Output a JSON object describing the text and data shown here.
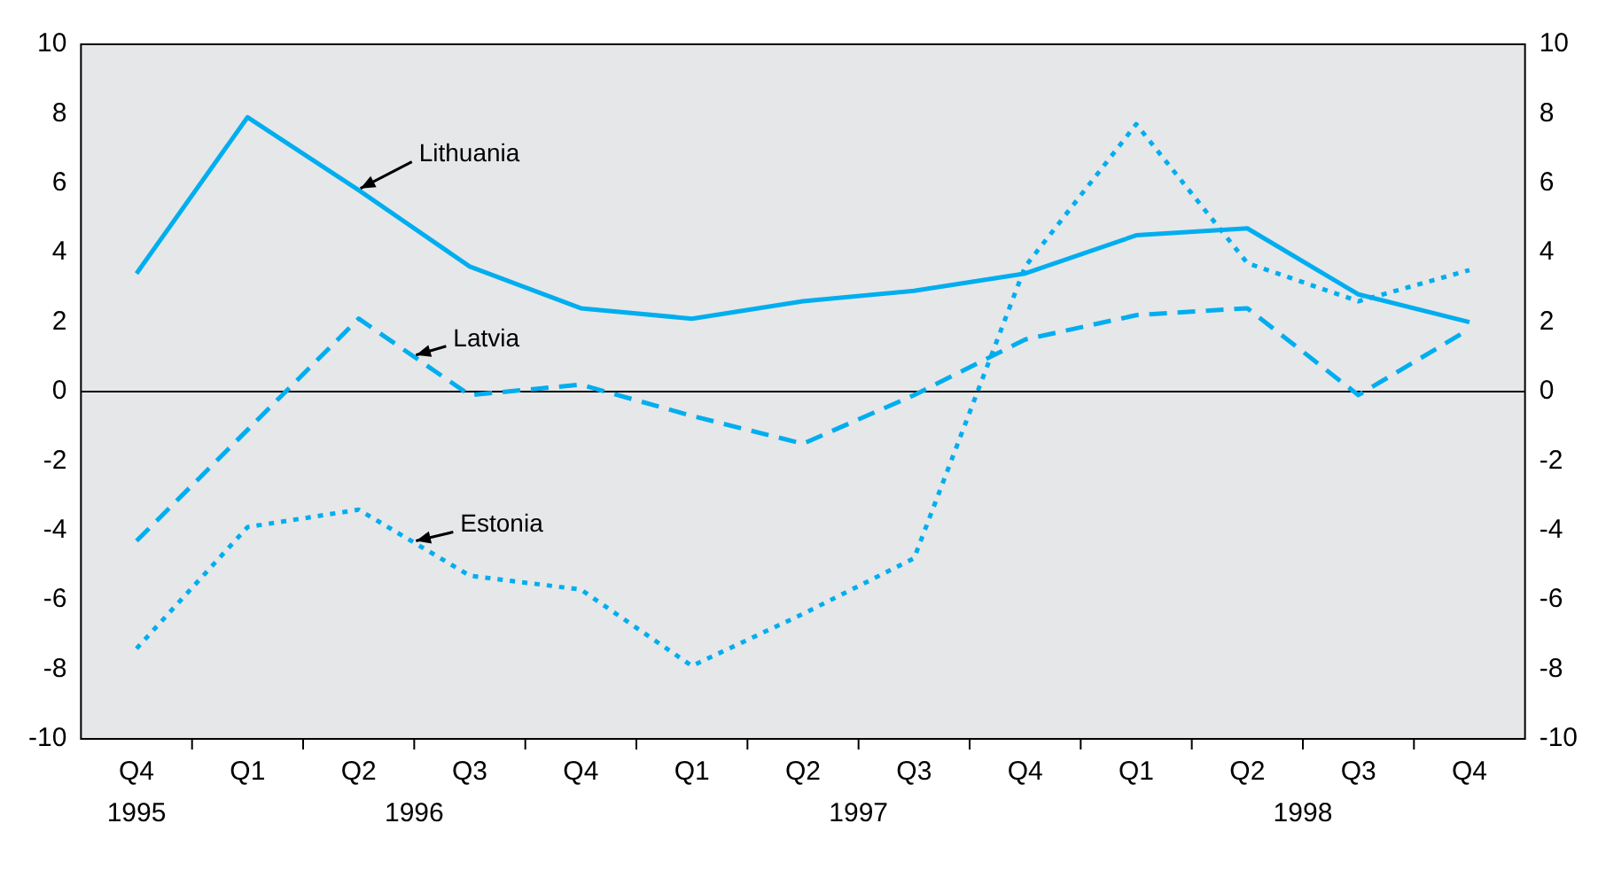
{
  "chart_data": {
    "type": "line",
    "categories": [
      "Q4",
      "Q1",
      "Q2",
      "Q3",
      "Q4",
      "Q1",
      "Q2",
      "Q3",
      "Q4",
      "Q1",
      "Q2",
      "Q3",
      "Q4"
    ],
    "series": [
      {
        "name": "Lithuania",
        "color": "#00aeef",
        "line_style": "solid",
        "values": [
          3.4,
          7.9,
          5.8,
          3.6,
          2.4,
          2.1,
          2.6,
          2.9,
          3.4,
          4.5,
          4.7,
          2.8,
          2.0
        ]
      },
      {
        "name": "Latvia",
        "color": "#00aeef",
        "line_style": "dashed",
        "values": [
          -4.3,
          -1.1,
          2.1,
          -0.1,
          0.2,
          -0.7,
          -1.5,
          -0.1,
          1.5,
          2.2,
          2.4,
          -0.1,
          1.8
        ]
      },
      {
        "name": "Estonia",
        "color": "#00aeef",
        "line_style": "dotted",
        "values": [
          -7.4,
          -3.9,
          -3.4,
          -5.3,
          -5.7,
          -7.9,
          -6.4,
          -4.8,
          3.6,
          7.7,
          3.7,
          2.6,
          3.5
        ]
      }
    ],
    "annotations": [
      "1995",
      "1996",
      "1997",
      "1998"
    ],
    "ylim": [
      -10,
      10
    ],
    "yticks": [
      -10,
      -8,
      -6,
      -4,
      -2,
      0,
      2,
      4,
      6,
      8,
      10
    ],
    "y2lim": [
      -10,
      10
    ],
    "y2ticks": [
      -10,
      -8,
      -6,
      -4,
      -2,
      0,
      2,
      4,
      6,
      8,
      10
    ],
    "ref_lines": [
      {
        "axis": "y",
        "value": 0,
        "color": "#000000"
      }
    ],
    "grid": false,
    "legend": false,
    "marker": "none"
  }
}
